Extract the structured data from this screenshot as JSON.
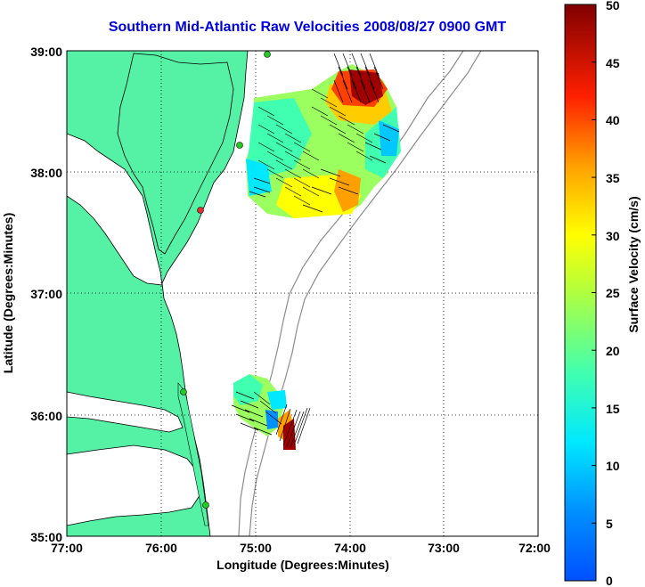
{
  "title": "Southern Mid-Atlantic Raw Velocities 2008/08/27 0900 GMT",
  "xaxis": {
    "label": "Longitude (Degrees:Minutes)",
    "ticks": [
      "77:00",
      "76:00",
      "75:00",
      "74:00",
      "73:00",
      "72:00"
    ]
  },
  "yaxis": {
    "label": "Latitude (Degrees:Minutes)",
    "ticks": [
      "39:00",
      "38:00",
      "37:00",
      "36:00",
      "35:00"
    ]
  },
  "colorbar": {
    "label": "Surface Velocity (cm/s)",
    "ticks": [
      "50",
      "45",
      "40",
      "35",
      "30",
      "25",
      "20",
      "15",
      "10",
      "5",
      "0"
    ],
    "min": 0,
    "max": 50
  },
  "colors": {
    "land": "#55f2a6",
    "title": "#0000e0",
    "station": "#22cc22",
    "station_alt": "#e03030"
  }
}
